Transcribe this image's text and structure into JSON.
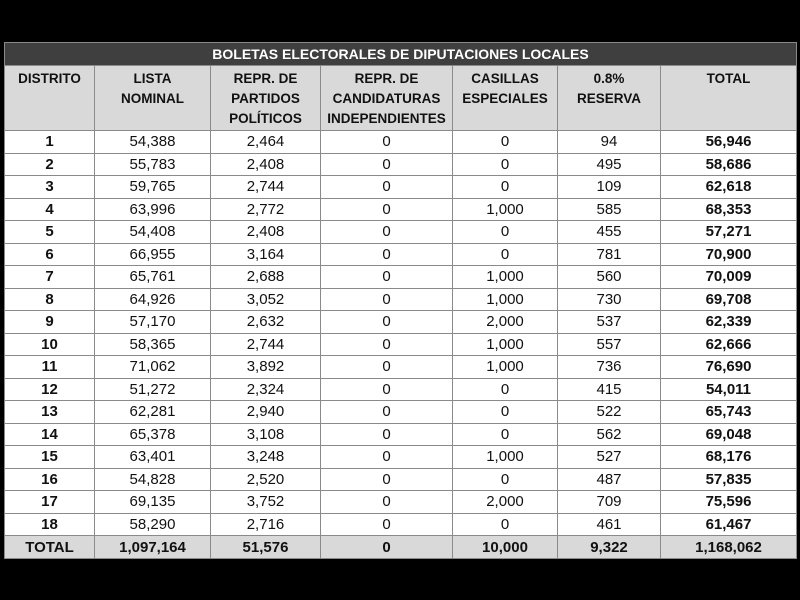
{
  "title": "BOLETAS ELECTORALES DE DIPUTACIONES LOCALES",
  "columns": [
    "DISTRITO",
    "LISTA\nNOMINAL",
    "REPR. DE\nPARTIDOS\nPOLÍTICOS",
    "REPR. DE\nCANDIDATURAS\nINDEPENDIENTES",
    "CASILLAS\nESPECIALES",
    "0.8%\nRESERVA",
    "TOTAL"
  ],
  "rows": [
    [
      "1",
      "54,388",
      "2,464",
      "0",
      "0",
      "94",
      "56,946"
    ],
    [
      "2",
      "55,783",
      "2,408",
      "0",
      "0",
      "495",
      "58,686"
    ],
    [
      "3",
      "59,765",
      "2,744",
      "0",
      "0",
      "109",
      "62,618"
    ],
    [
      "4",
      "63,996",
      "2,772",
      "0",
      "1,000",
      "585",
      "68,353"
    ],
    [
      "5",
      "54,408",
      "2,408",
      "0",
      "0",
      "455",
      "57,271"
    ],
    [
      "6",
      "66,955",
      "3,164",
      "0",
      "0",
      "781",
      "70,900"
    ],
    [
      "7",
      "65,761",
      "2,688",
      "0",
      "1,000",
      "560",
      "70,009"
    ],
    [
      "8",
      "64,926",
      "3,052",
      "0",
      "1,000",
      "730",
      "69,708"
    ],
    [
      "9",
      "57,170",
      "2,632",
      "0",
      "2,000",
      "537",
      "62,339"
    ],
    [
      "10",
      "58,365",
      "2,744",
      "0",
      "1,000",
      "557",
      "62,666"
    ],
    [
      "11",
      "71,062",
      "3,892",
      "0",
      "1,000",
      "736",
      "76,690"
    ],
    [
      "12",
      "51,272",
      "2,324",
      "0",
      "0",
      "415",
      "54,011"
    ],
    [
      "13",
      "62,281",
      "2,940",
      "0",
      "0",
      "522",
      "65,743"
    ],
    [
      "14",
      "65,378",
      "3,108",
      "0",
      "0",
      "562",
      "69,048"
    ],
    [
      "15",
      "63,401",
      "3,248",
      "0",
      "1,000",
      "527",
      "68,176"
    ],
    [
      "16",
      "54,828",
      "2,520",
      "0",
      "0",
      "487",
      "57,835"
    ],
    [
      "17",
      "69,135",
      "3,752",
      "0",
      "2,000",
      "709",
      "75,596"
    ],
    [
      "18",
      "58,290",
      "2,716",
      "0",
      "0",
      "461",
      "61,467"
    ]
  ],
  "total": [
    "TOTAL",
    "1,097,164",
    "51,576",
    "0",
    "10,000",
    "9,322",
    "1,168,062"
  ],
  "colors": {
    "title_bg": "#3f3f3f",
    "header_bg": "#d9d9d9",
    "border": "#8a8a8a"
  }
}
